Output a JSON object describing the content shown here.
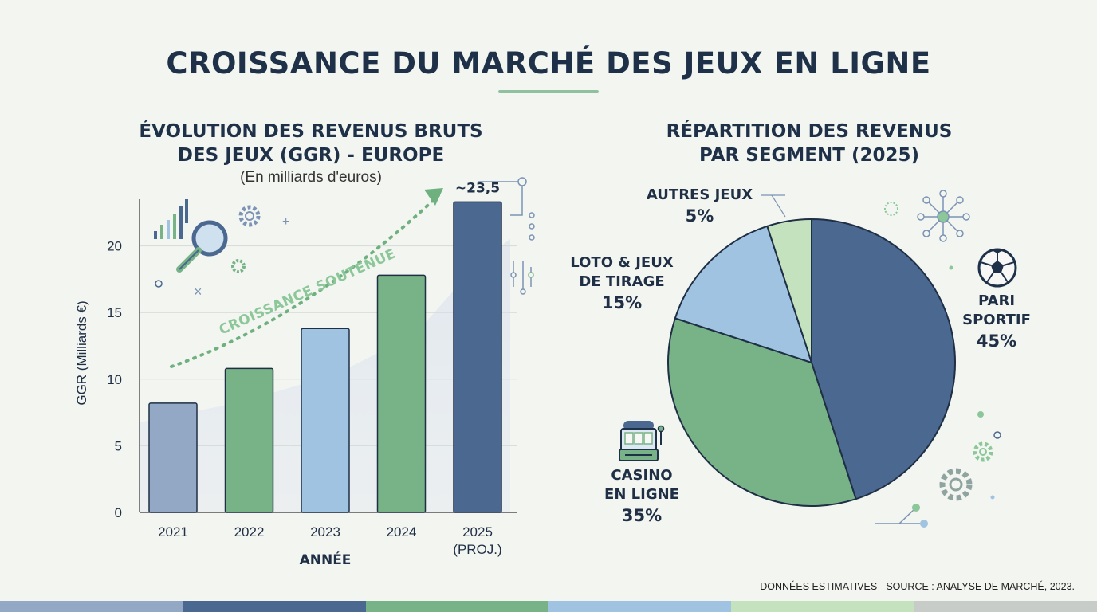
{
  "title": "CROISSANCE DU MARCHÉ DES JEUX EN LIGNE",
  "footnote": "DONNÉES ESTIMATIVES - SOURCE : ANALYSE DE MARCHÉ, 2023.",
  "colors": {
    "navy": "#4a6890",
    "green": "#78b387",
    "light_blue": "#9fc3e0",
    "pale_green": "#c4e2bd",
    "slate": "#93a8c5",
    "text": "#1f3148"
  },
  "stripe_colors": [
    "#93a8c5",
    "#4a6890",
    "#78b387",
    "#9fc3e0",
    "#c4e2bd",
    "#c8ccc8"
  ],
  "chart_data": [
    {
      "type": "bar",
      "title_line1": "ÉVOLUTION DES REVENUS BRUTS",
      "title_line2": "DES JEUX (GGR) - EUROPE",
      "subtitle": "(En milliards d'euros)",
      "xlabel": "ANNÉE",
      "ylabel": "GGR (Milliards €)",
      "ylim": [
        0,
        24
      ],
      "yticks": [
        0,
        5,
        10,
        15,
        20
      ],
      "grid": true,
      "categories": [
        "2021",
        "2022",
        "2023",
        "2024",
        "2025"
      ],
      "category_sublabels": [
        "",
        "",
        "",
        "",
        "(PROJ.)"
      ],
      "values": [
        8.2,
        10.8,
        13.8,
        17.8,
        23.3
      ],
      "bar_colors": [
        "#93a8c5",
        "#78b387",
        "#9fc3e0",
        "#78b387",
        "#4a6890"
      ],
      "value_labels": [
        "",
        "",
        "",
        "",
        "~23,5"
      ],
      "annotation": "CROISSANCE SOUTENUE"
    },
    {
      "type": "pie",
      "title_line1": "RÉPARTITION DES REVENUS",
      "title_line2": "PAR SEGMENT (2025)",
      "slices": [
        {
          "name_line1": "PARI",
          "name_line2": "SPORTIF",
          "value": 45,
          "label": "45%",
          "color": "#4a6890",
          "icon": "soccer-ball-icon"
        },
        {
          "name_line1": "CASINO",
          "name_line2": "EN LIGNE",
          "value": 35,
          "label": "35%",
          "color": "#78b387",
          "icon": "slot-machine-icon"
        },
        {
          "name_line1": "LOTO & JEUX",
          "name_line2": "DE TIRAGE",
          "value": 15,
          "label": "15%",
          "color": "#9fc3e0",
          "icon": ""
        },
        {
          "name_line1": "AUTRES JEUX",
          "name_line2": "",
          "value": 5,
          "label": "5%",
          "color": "#c4e2bd",
          "icon": ""
        }
      ]
    }
  ]
}
